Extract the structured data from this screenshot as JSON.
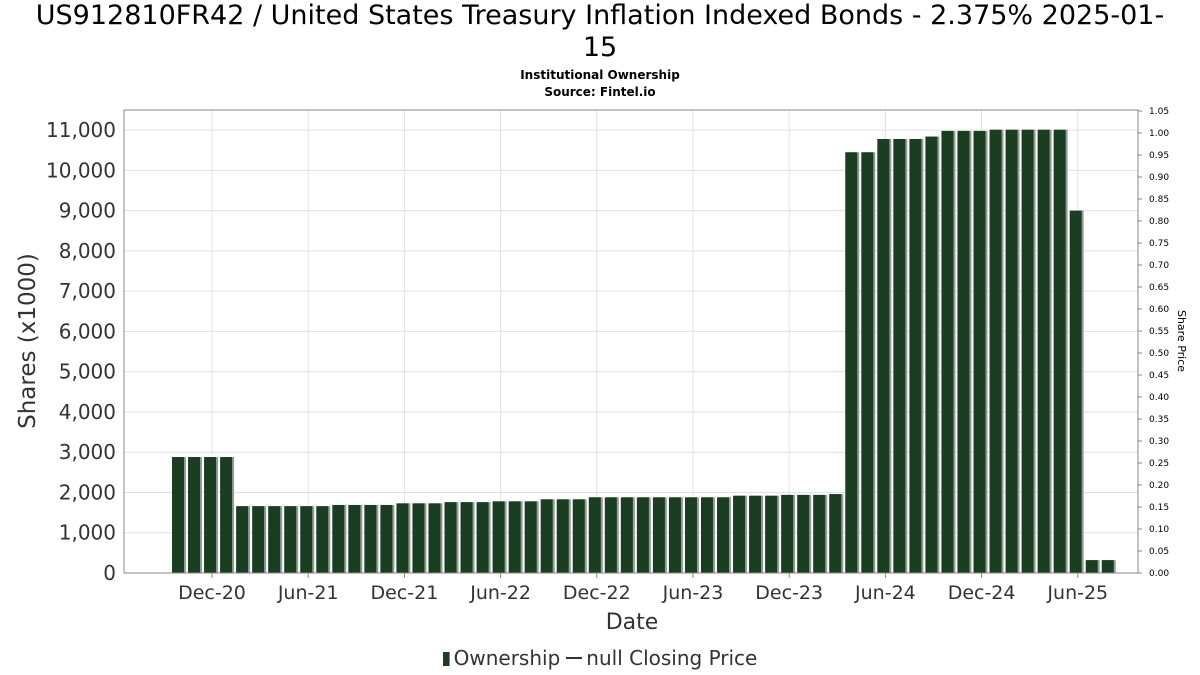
{
  "chart_data": {
    "type": "bar",
    "title_line1": "US912810FR42 / United States Treasury Inflation Indexed Bonds - 2.375% 2025-01-",
    "title_line2": "15",
    "subtitle": "Institutional Ownership",
    "source": "Source: Fintel.io",
    "xlabel": "Date",
    "ylabel": "Shares (x1000)",
    "y2label": "Share Price",
    "ylim": [
      0,
      11500
    ],
    "y2lim": [
      0,
      1.05
    ],
    "y_ticks": [
      "0",
      "1,000",
      "2,000",
      "3,000",
      "4,000",
      "5,000",
      "6,000",
      "7,000",
      "8,000",
      "9,000",
      "10,000",
      "11,000"
    ],
    "y2_ticks": [
      "0.00",
      "0.05",
      "0.10",
      "0.15",
      "0.20",
      "0.25",
      "0.30",
      "0.35",
      "0.40",
      "0.45",
      "0.50",
      "0.55",
      "0.60",
      "0.65",
      "0.70",
      "0.75",
      "0.80",
      "0.85",
      "0.90",
      "0.95",
      "1.00",
      "1.05"
    ],
    "x_ticks": [
      "Dec-20",
      "Jun-21",
      "Dec-21",
      "Jun-22",
      "Dec-22",
      "Jun-23",
      "Dec-23",
      "Jun-24",
      "Dec-24",
      "Jun-25"
    ],
    "grid": true,
    "legend_position": "bottom",
    "bar_color": "#1a3f20",
    "series": [
      {
        "name": "Ownership",
        "values": [
          2880,
          2880,
          2880,
          2880,
          1660,
          1660,
          1660,
          1660,
          1660,
          1660,
          1690,
          1690,
          1690,
          1690,
          1730,
          1730,
          1730,
          1760,
          1760,
          1760,
          1780,
          1780,
          1780,
          1830,
          1830,
          1830,
          1880,
          1880,
          1880,
          1880,
          1880,
          1880,
          1880,
          1880,
          1880,
          1920,
          1920,
          1920,
          1940,
          1940,
          1940,
          1960,
          10450,
          10450,
          10780,
          10780,
          10780,
          10840,
          10980,
          10980,
          10980,
          11010,
          11010,
          11010,
          11010,
          11010,
          9000,
          320,
          320
        ]
      }
    ],
    "legend": [
      {
        "label": "Ownership",
        "kind": "bar"
      },
      {
        "label": "null Closing Price",
        "kind": "line"
      }
    ]
  }
}
